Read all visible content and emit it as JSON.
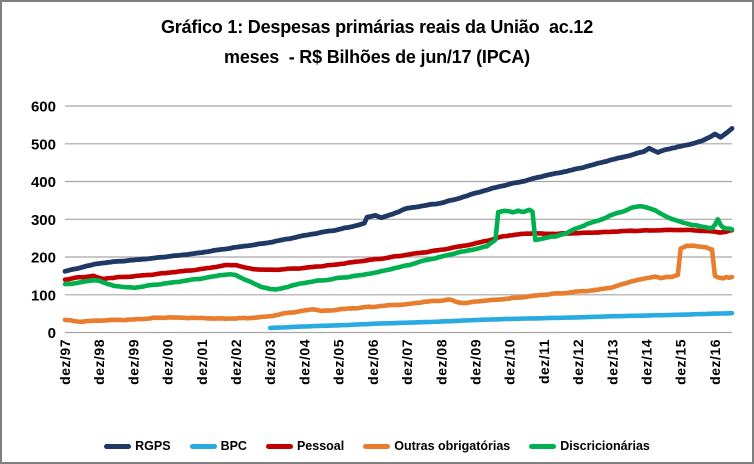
{
  "chart_data": {
    "type": "line",
    "title": "Gráfico 1: Despesas primárias reais da União  ac.12 meses  - R$ Bilhões de jun/17 (IPCA)",
    "title_line1": "Gráfico 1: Despesas primárias reais da União  ac.12",
    "title_line2": "meses  - R$ Bilhões de jun/17 (IPCA)",
    "ylabel": "",
    "xlabel": "",
    "ylim": [
      0,
      600
    ],
    "y_ticks": [
      0,
      100,
      200,
      300,
      400,
      500,
      600
    ],
    "grid": "horizontal-only",
    "legend_position": "bottom",
    "x_unit": "month",
    "x_range": "dez/97 to jun/17",
    "months_total": 235,
    "x_tick_month_indices": [
      0,
      12,
      24,
      36,
      48,
      60,
      72,
      84,
      96,
      108,
      120,
      132,
      144,
      156,
      168,
      180,
      192,
      204,
      216,
      228
    ],
    "x_tick_labels": [
      "dez/97",
      "dez/98",
      "dez/99",
      "dez/00",
      "dez/01",
      "dez/02",
      "dez/03",
      "dez/04",
      "dez/05",
      "dez/06",
      "dez/07",
      "dez/08",
      "dez/09",
      "dez/10",
      "dez/11",
      "dez/12",
      "dez/13",
      "dez/14",
      "dez/15",
      "dez/16"
    ],
    "colors": {
      "gridline": "#a6a6a6",
      "frame_border": "#7f7f7f",
      "text": "#000000"
    },
    "series": [
      {
        "name": "RGPS",
        "color": "#1f3864",
        "width": 4.8,
        "wiggle": 0.9,
        "anchors": [
          [
            0,
            162
          ],
          [
            6,
            173
          ],
          [
            12,
            183
          ],
          [
            18,
            188
          ],
          [
            24,
            192
          ],
          [
            30,
            196
          ],
          [
            36,
            201
          ],
          [
            42,
            206
          ],
          [
            48,
            212
          ],
          [
            54,
            219
          ],
          [
            60,
            226
          ],
          [
            66,
            232
          ],
          [
            72,
            239
          ],
          [
            78,
            248
          ],
          [
            84,
            257
          ],
          [
            90,
            265
          ],
          [
            96,
            273
          ],
          [
            102,
            283
          ],
          [
            105,
            289
          ],
          [
            106,
            305
          ],
          [
            109,
            311
          ],
          [
            111,
            304
          ],
          [
            114,
            311
          ],
          [
            117,
            320
          ],
          [
            120,
            329
          ],
          [
            126,
            336
          ],
          [
            132,
            343
          ],
          [
            138,
            355
          ],
          [
            144,
            369
          ],
          [
            150,
            382
          ],
          [
            156,
            393
          ],
          [
            162,
            403
          ],
          [
            168,
            415
          ],
          [
            174,
            424
          ],
          [
            180,
            434
          ],
          [
            186,
            446
          ],
          [
            192,
            458
          ],
          [
            196,
            465
          ],
          [
            200,
            473
          ],
          [
            203,
            479
          ],
          [
            205,
            488
          ],
          [
            208,
            477
          ],
          [
            211,
            485
          ],
          [
            214,
            490
          ],
          [
            216,
            493
          ],
          [
            220,
            500
          ],
          [
            224,
            509
          ],
          [
            227,
            521
          ],
          [
            228,
            526
          ],
          [
            230,
            517
          ],
          [
            232,
            528
          ],
          [
            234,
            541
          ]
        ]
      },
      {
        "name": "BPC",
        "color": "#29abe2",
        "width": 4.6,
        "wiggle": 0.25,
        "anchors": [
          [
            72,
            12
          ],
          [
            84,
            16
          ],
          [
            96,
            19
          ],
          [
            108,
            23
          ],
          [
            120,
            26
          ],
          [
            132,
            29
          ],
          [
            144,
            33
          ],
          [
            156,
            36
          ],
          [
            168,
            38
          ],
          [
            180,
            40
          ],
          [
            192,
            43
          ],
          [
            204,
            45
          ],
          [
            216,
            47
          ],
          [
            228,
            50
          ],
          [
            234,
            51
          ]
        ]
      },
      {
        "name": "Pessoal",
        "color": "#c00000",
        "width": 4.6,
        "wiggle": 0.9,
        "anchors": [
          [
            0,
            140
          ],
          [
            4,
            145
          ],
          [
            10,
            150
          ],
          [
            13,
            142
          ],
          [
            18,
            146
          ],
          [
            24,
            149
          ],
          [
            30,
            153
          ],
          [
            36,
            158
          ],
          [
            42,
            163
          ],
          [
            48,
            168
          ],
          [
            52,
            173
          ],
          [
            56,
            178
          ],
          [
            60,
            179
          ],
          [
            63,
            172
          ],
          [
            66,
            168
          ],
          [
            70,
            166
          ],
          [
            74,
            166
          ],
          [
            78,
            168
          ],
          [
            84,
            171
          ],
          [
            90,
            176
          ],
          [
            96,
            181
          ],
          [
            102,
            187
          ],
          [
            108,
            193
          ],
          [
            114,
            199
          ],
          [
            120,
            206
          ],
          [
            126,
            212
          ],
          [
            132,
            219
          ],
          [
            138,
            227
          ],
          [
            144,
            236
          ],
          [
            150,
            247
          ],
          [
            154,
            255
          ],
          [
            158,
            259
          ],
          [
            162,
            262
          ],
          [
            165,
            263
          ],
          [
            168,
            261
          ],
          [
            174,
            262
          ],
          [
            180,
            263
          ],
          [
            186,
            265
          ],
          [
            192,
            267
          ],
          [
            198,
            269
          ],
          [
            204,
            270
          ],
          [
            210,
            271
          ],
          [
            216,
            272
          ],
          [
            222,
            270
          ],
          [
            226,
            268
          ],
          [
            228,
            267
          ],
          [
            230,
            265
          ],
          [
            232,
            267
          ],
          [
            234,
            271
          ]
        ]
      },
      {
        "name": "Outras obrigatórias",
        "color": "#e87d2e",
        "width": 4.6,
        "wiggle": 1.2,
        "anchors": [
          [
            0,
            33
          ],
          [
            5,
            29
          ],
          [
            12,
            32
          ],
          [
            18,
            33
          ],
          [
            24,
            34
          ],
          [
            30,
            38
          ],
          [
            36,
            40
          ],
          [
            42,
            39
          ],
          [
            48,
            38
          ],
          [
            54,
            37
          ],
          [
            60,
            37
          ],
          [
            66,
            39
          ],
          [
            72,
            43
          ],
          [
            78,
            52
          ],
          [
            84,
            58
          ],
          [
            87,
            62
          ],
          [
            90,
            57
          ],
          [
            96,
            61
          ],
          [
            102,
            65
          ],
          [
            108,
            68
          ],
          [
            114,
            72
          ],
          [
            120,
            75
          ],
          [
            126,
            81
          ],
          [
            132,
            85
          ],
          [
            135,
            87
          ],
          [
            138,
            80
          ],
          [
            141,
            78
          ],
          [
            144,
            82
          ],
          [
            150,
            86
          ],
          [
            156,
            90
          ],
          [
            162,
            95
          ],
          [
            168,
            100
          ],
          [
            174,
            104
          ],
          [
            180,
            108
          ],
          [
            186,
            112
          ],
          [
            192,
            120
          ],
          [
            195,
            126
          ],
          [
            198,
            134
          ],
          [
            201,
            139
          ],
          [
            204,
            144
          ],
          [
            207,
            148
          ],
          [
            209,
            144
          ],
          [
            211,
            147
          ],
          [
            213,
            148
          ],
          [
            215,
            153
          ],
          [
            216,
            222
          ],
          [
            218,
            229
          ],
          [
            220,
            231
          ],
          [
            222,
            228
          ],
          [
            225,
            225
          ],
          [
            227,
            220
          ],
          [
            228,
            150
          ],
          [
            229,
            146
          ],
          [
            231,
            143
          ],
          [
            232,
            147
          ],
          [
            233,
            145
          ],
          [
            234,
            147
          ]
        ]
      },
      {
        "name": "Discricionárias",
        "color": "#00b050",
        "width": 4.6,
        "wiggle": 1.2,
        "anchors": [
          [
            0,
            127
          ],
          [
            6,
            134
          ],
          [
            10,
            139
          ],
          [
            12,
            137
          ],
          [
            15,
            128
          ],
          [
            18,
            123
          ],
          [
            21,
            120
          ],
          [
            24,
            119
          ],
          [
            30,
            125
          ],
          [
            36,
            131
          ],
          [
            42,
            137
          ],
          [
            48,
            143
          ],
          [
            51,
            147
          ],
          [
            54,
            151
          ],
          [
            57,
            154
          ],
          [
            60,
            152
          ],
          [
            63,
            141
          ],
          [
            66,
            130
          ],
          [
            69,
            121
          ],
          [
            72,
            115
          ],
          [
            74,
            113
          ],
          [
            78,
            121
          ],
          [
            84,
            132
          ],
          [
            90,
            138
          ],
          [
            96,
            144
          ],
          [
            102,
            150
          ],
          [
            108,
            157
          ],
          [
            114,
            167
          ],
          [
            120,
            178
          ],
          [
            126,
            190
          ],
          [
            132,
            201
          ],
          [
            138,
            212
          ],
          [
            144,
            221
          ],
          [
            148,
            228
          ],
          [
            151,
            246
          ],
          [
            152,
            320
          ],
          [
            155,
            322
          ],
          [
            157,
            318
          ],
          [
            159,
            323
          ],
          [
            161,
            319
          ],
          [
            163,
            324
          ],
          [
            164,
            320
          ],
          [
            165,
            246
          ],
          [
            168,
            250
          ],
          [
            172,
            255
          ],
          [
            176,
            263
          ],
          [
            180,
            278
          ],
          [
            184,
            289
          ],
          [
            188,
            299
          ],
          [
            192,
            312
          ],
          [
            196,
            322
          ],
          [
            199,
            330
          ],
          [
            202,
            335
          ],
          [
            204,
            332
          ],
          [
            207,
            323
          ],
          [
            210,
            311
          ],
          [
            213,
            300
          ],
          [
            216,
            293
          ],
          [
            220,
            285
          ],
          [
            224,
            280
          ],
          [
            227,
            277
          ],
          [
            228,
            284
          ],
          [
            229,
            300
          ],
          [
            230,
            285
          ],
          [
            231,
            277
          ],
          [
            234,
            274
          ]
        ]
      }
    ]
  }
}
